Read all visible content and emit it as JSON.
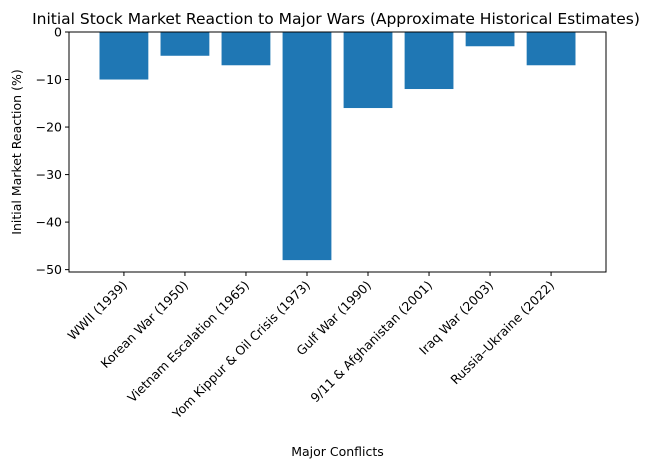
{
  "chart_data": {
    "type": "bar",
    "title": "Initial Stock Market Reaction to Major Wars (Approximate Historical Estimates)",
    "xlabel": "Major Conflicts",
    "ylabel": "Initial Market Reaction (%)",
    "categories": [
      "WWII (1939)",
      "Korean War (1950)",
      "Vietnam Escalation (1965)",
      "Yom Kippur & Oil Crisis (1973)",
      "Gulf War (1990)",
      "9/11 & Afghanistan (2001)",
      "Iraq War (2003)",
      "Russia–Ukraine (2022)"
    ],
    "values": [
      -10,
      -5,
      -7,
      -48,
      -16,
      -12,
      -3,
      -7
    ],
    "ylim": [
      -50.5,
      0
    ],
    "yticks": [
      0,
      -10,
      -20,
      -30,
      -40,
      -50
    ],
    "ytick_labels": [
      "0",
      "−10",
      "−20",
      "−30",
      "−40",
      "−50"
    ],
    "bar_color": "#1f77b4",
    "grid": false,
    "legend": "none"
  }
}
